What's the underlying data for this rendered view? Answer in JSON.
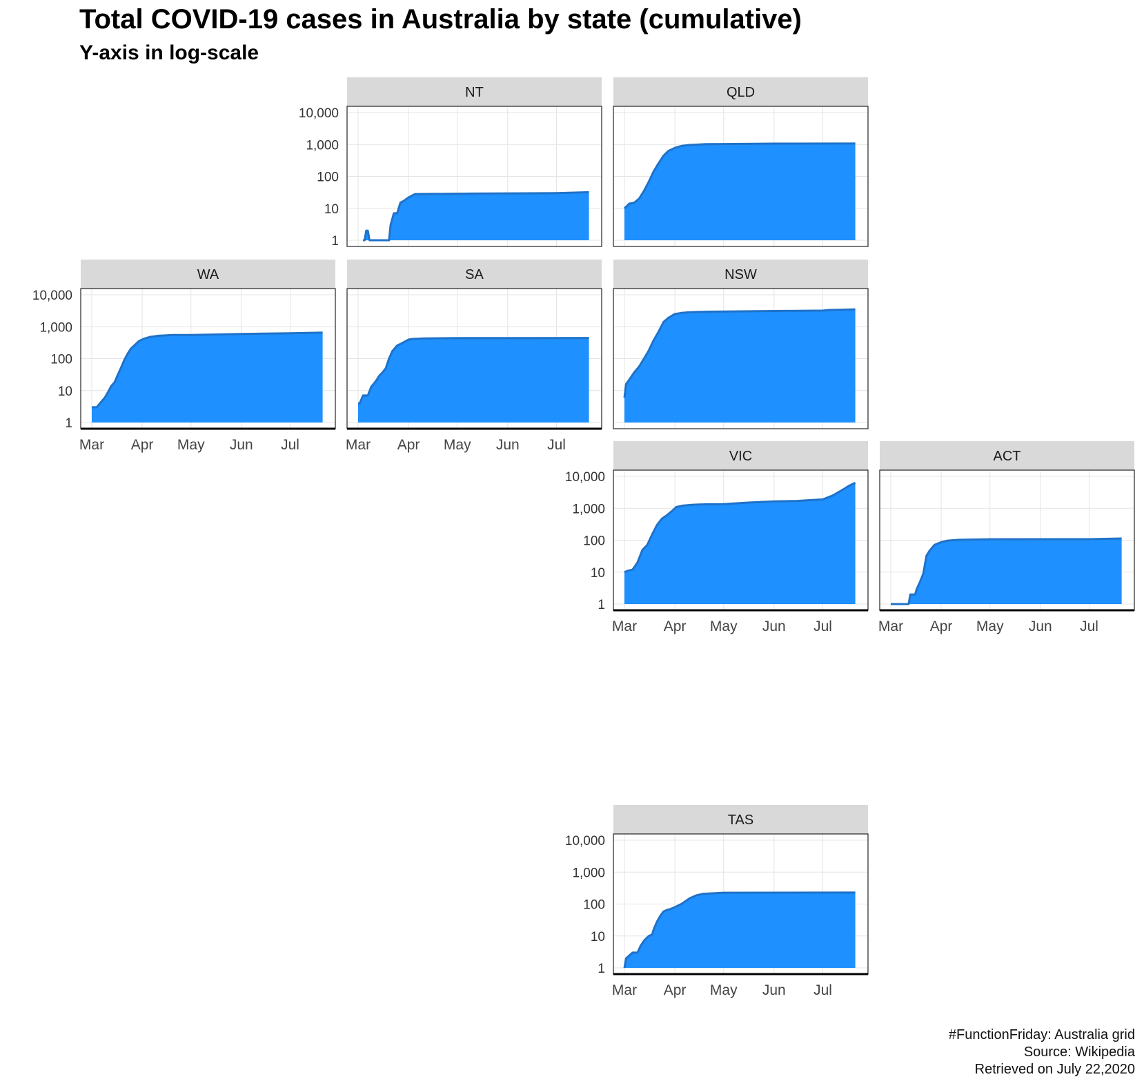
{
  "chart_data": {
    "type": "area",
    "title": "Total COVID-19 cases in Australia by state (cumulative)",
    "subtitle": "Y-axis in log-scale",
    "yscale": "log",
    "ylim": [
      1,
      10000
    ],
    "yticks": [
      1,
      10,
      100,
      1000,
      10000
    ],
    "ytick_labels": [
      "1",
      "10",
      "100",
      "1,000",
      "10,000"
    ],
    "xlim": [
      "2020-03-01",
      "2020-07-22"
    ],
    "xticks": [
      "2020-03-01",
      "2020-04-01",
      "2020-05-01",
      "2020-06-01",
      "2020-07-01"
    ],
    "xtick_labels": [
      "Mar",
      "Apr",
      "May",
      "Jun",
      "Jul"
    ],
    "grid": true,
    "color": "#1e90ff",
    "line_color": "#1f72c9",
    "panels": [
      {
        "name": "NT",
        "row": 0,
        "col": 2,
        "x": [
          "2020-03-04",
          "2020-03-05",
          "2020-03-06",
          "2020-03-07",
          "2020-03-08",
          "2020-03-20",
          "2020-03-21",
          "2020-03-23",
          "2020-03-25",
          "2020-03-27",
          "2020-03-29",
          "2020-04-01",
          "2020-04-05",
          "2020-05-10",
          "2020-07-01",
          "2020-07-21"
        ],
        "values": [
          1,
          1,
          2,
          2,
          1,
          1,
          3,
          7,
          7,
          15,
          17,
          22,
          28,
          29,
          30,
          32
        ]
      },
      {
        "name": "QLD",
        "row": 0,
        "col": 3,
        "x": [
          "2020-03-01",
          "2020-03-04",
          "2020-03-07",
          "2020-03-10",
          "2020-03-13",
          "2020-03-16",
          "2020-03-19",
          "2020-03-22",
          "2020-03-25",
          "2020-03-28",
          "2020-04-01",
          "2020-04-05",
          "2020-04-10",
          "2020-04-20",
          "2020-05-01",
          "2020-06-01",
          "2020-07-21"
        ],
        "values": [
          10,
          14,
          15,
          20,
          35,
          68,
          144,
          259,
          443,
          625,
          781,
          900,
          965,
          1024,
          1035,
          1065,
          1071
        ]
      },
      {
        "name": "WA",
        "row": 1,
        "col": 1,
        "x": [
          "2020-03-01",
          "2020-03-04",
          "2020-03-06",
          "2020-03-09",
          "2020-03-11",
          "2020-03-13",
          "2020-03-15",
          "2020-03-17",
          "2020-03-19",
          "2020-03-21",
          "2020-03-23",
          "2020-03-25",
          "2020-03-27",
          "2020-03-30",
          "2020-04-02",
          "2020-04-06",
          "2020-04-11",
          "2020-04-20",
          "2020-05-01",
          "2020-06-01",
          "2020-07-01",
          "2020-07-21"
        ],
        "values": [
          3,
          3,
          4,
          6,
          9,
          14,
          18,
          31,
          52,
          90,
          140,
          205,
          255,
          355,
          420,
          480,
          520,
          548,
          551,
          594,
          623,
          658
        ]
      },
      {
        "name": "SA",
        "row": 1,
        "col": 2,
        "x": [
          "2020-03-01",
          "2020-03-02",
          "2020-03-04",
          "2020-03-07",
          "2020-03-09",
          "2020-03-12",
          "2020-03-14",
          "2020-03-16",
          "2020-03-18",
          "2020-03-20",
          "2020-03-22",
          "2020-03-25",
          "2020-03-28",
          "2020-04-01",
          "2020-04-04",
          "2020-04-10",
          "2020-05-01",
          "2020-07-21"
        ],
        "values": [
          4,
          4,
          7,
          7,
          13,
          20,
          29,
          37,
          50,
          100,
          170,
          257,
          305,
          396,
          415,
          429,
          438,
          443
        ]
      },
      {
        "name": "NSW",
        "row": 1,
        "col": 3,
        "x": [
          "2020-03-01",
          "2020-03-02",
          "2020-03-04",
          "2020-03-07",
          "2020-03-10",
          "2020-03-13",
          "2020-03-16",
          "2020-03-19",
          "2020-03-22",
          "2020-03-25",
          "2020-03-28",
          "2020-04-01",
          "2020-04-05",
          "2020-04-10",
          "2020-04-20",
          "2020-05-01",
          "2020-06-01",
          "2020-07-01",
          "2020-07-05",
          "2020-07-21"
        ],
        "values": [
          6,
          16,
          22,
          37,
          56,
          100,
          180,
          380,
          700,
          1400,
          1900,
          2500,
          2700,
          2850,
          2950,
          3000,
          3100,
          3200,
          3350,
          3500
        ]
      },
      {
        "name": "VIC",
        "row": 2,
        "col": 3,
        "x": [
          "2020-03-01",
          "2020-03-03",
          "2020-03-06",
          "2020-03-09",
          "2020-03-12",
          "2020-03-15",
          "2020-03-18",
          "2020-03-21",
          "2020-03-24",
          "2020-03-27",
          "2020-03-30",
          "2020-04-02",
          "2020-04-06",
          "2020-04-12",
          "2020-04-20",
          "2020-05-01",
          "2020-05-15",
          "2020-06-01",
          "2020-06-15",
          "2020-07-01",
          "2020-07-07",
          "2020-07-12",
          "2020-07-17",
          "2020-07-21"
        ],
        "values": [
          10,
          11,
          12,
          20,
          49,
          71,
          151,
          298,
          470,
          600,
          800,
          1100,
          1210,
          1290,
          1330,
          1350,
          1500,
          1640,
          1700,
          1900,
          2500,
          3500,
          5000,
          6300
        ]
      },
      {
        "name": "ACT",
        "row": 2,
        "col": 4,
        "x": [
          "2020-03-01",
          "2020-03-12",
          "2020-03-13",
          "2020-03-16",
          "2020-03-17",
          "2020-03-19",
          "2020-03-21",
          "2020-03-23",
          "2020-03-25",
          "2020-03-28",
          "2020-04-01",
          "2020-04-05",
          "2020-04-12",
          "2020-05-01",
          "2020-07-01",
          "2020-07-21"
        ],
        "values": [
          1,
          1,
          2,
          2,
          3,
          5,
          9,
          33,
          48,
          72,
          87,
          97,
          103,
          107,
          108,
          113
        ]
      },
      {
        "name": "TAS",
        "row": 4,
        "col": 3,
        "x": [
          "2020-03-01",
          "2020-03-02",
          "2020-03-06",
          "2020-03-09",
          "2020-03-11",
          "2020-03-13",
          "2020-03-14",
          "2020-03-16",
          "2020-03-18",
          "2020-03-19",
          "2020-03-21",
          "2020-03-23",
          "2020-03-25",
          "2020-03-27",
          "2020-03-29",
          "2020-04-01",
          "2020-04-05",
          "2020-04-10",
          "2020-04-14",
          "2020-04-18",
          "2020-04-22",
          "2020-05-01",
          "2020-07-21"
        ],
        "values": [
          1,
          2,
          3,
          3,
          5,
          7,
          8,
          10,
          11,
          16,
          28,
          42,
          58,
          65,
          69,
          80,
          100,
          150,
          185,
          207,
          214,
          226,
          229
        ]
      }
    ]
  },
  "caption": {
    "line1": "#FunctionFriday: Australia grid",
    "line2": "Source: Wikipedia",
    "line3": "Retrieved on July 22,2020"
  }
}
